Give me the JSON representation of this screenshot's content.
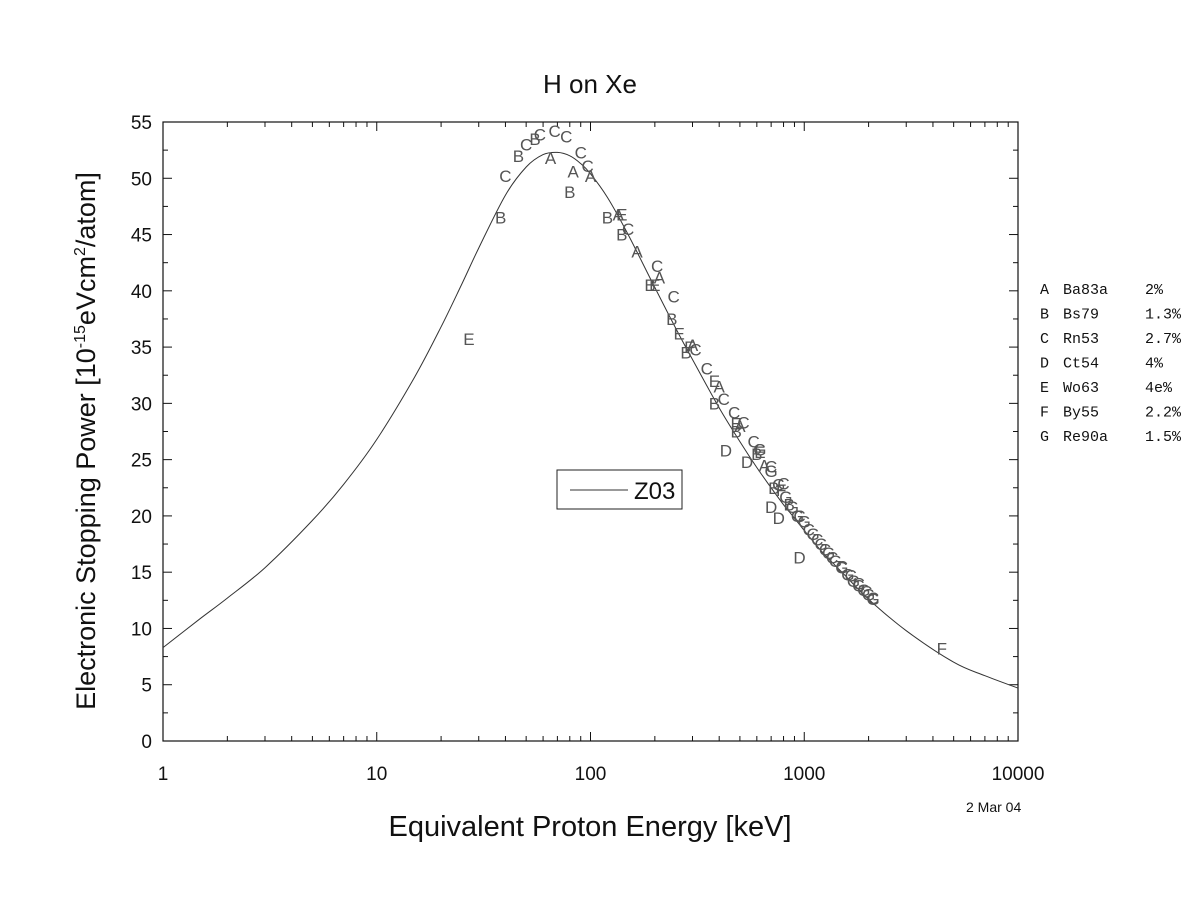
{
  "chart_data": {
    "type": "scatter",
    "title": "H on Xe",
    "xlabel": "Equivalent Proton Energy [keV]",
    "ylabel_main": "Electronic Stopping Power [10",
    "ylabel_exp1": "-15",
    "ylabel_mid": "eVcm",
    "ylabel_exp2": "2",
    "ylabel_end": "/atom]",
    "x_scale": "log",
    "xlim": [
      1,
      10000
    ],
    "ylim": [
      0,
      55
    ],
    "x_ticks": [
      1,
      10,
      100,
      1000,
      10000
    ],
    "x_tick_labels": [
      "1",
      "10",
      "100",
      "1000",
      "10000"
    ],
    "y_ticks": [
      0,
      5,
      10,
      15,
      20,
      25,
      30,
      35,
      40,
      45,
      50,
      55
    ],
    "y_tick_labels": [
      "0",
      "5",
      "10",
      "15",
      "20",
      "25",
      "30",
      "35",
      "40",
      "45",
      "50",
      "55"
    ],
    "grid": false,
    "date_label": "2 Mar 04",
    "legend": {
      "placement": "center",
      "entries": [
        {
          "name": "Z03",
          "style": "line",
          "color": "#333333"
        }
      ]
    },
    "curve": {
      "name": "Z03",
      "x": [
        1,
        1.5,
        2,
        3,
        5,
        7,
        10,
        15,
        20,
        25,
        30,
        40,
        50,
        60,
        70,
        80,
        90,
        100,
        120,
        150,
        200,
        250,
        300,
        400,
        500,
        600,
        700,
        800,
        900,
        1000,
        1200,
        1500,
        2000,
        3000,
        5000,
        7000,
        10000
      ],
      "y": [
        8.3,
        10.9,
        12.7,
        15.4,
        19.6,
        22.8,
        26.8,
        32.3,
        36.8,
        40.6,
        43.8,
        48.5,
        51.0,
        52.1,
        52.3,
        52.0,
        51.3,
        50.4,
        48.3,
        45.0,
        40.3,
        36.7,
        33.9,
        29.6,
        26.6,
        24.3,
        22.5,
        21.0,
        19.8,
        18.7,
        16.9,
        15.0,
        12.6,
        9.8,
        7.0,
        5.8,
        4.7
      ]
    },
    "reference_legend": [
      {
        "letter": "A",
        "ref": "Ba83a",
        "error": "2%"
      },
      {
        "letter": "B",
        "ref": "Bs79",
        "error": "1.3%"
      },
      {
        "letter": "C",
        "ref": "Rn53",
        "error": "2.7%"
      },
      {
        "letter": "D",
        "ref": "Ct54",
        "error": "4%"
      },
      {
        "letter": "E",
        "ref": "Wo63",
        "error": "4e%"
      },
      {
        "letter": "F",
        "ref": "By55",
        "error": "2.2%"
      },
      {
        "letter": "G",
        "ref": "Re90a",
        "error": "1.5%"
      }
    ],
    "points": [
      [
        "E",
        27,
        35.7
      ],
      [
        "E",
        140,
        46.8
      ],
      [
        "E",
        200,
        40.5
      ],
      [
        "E",
        260,
        36.2
      ],
      [
        "E",
        380,
        32.0
      ],
      [
        "E",
        480,
        28.2
      ],
      [
        "E",
        620,
        25.7
      ],
      [
        "F",
        4400,
        8.2
      ],
      [
        "F",
        290,
        35.0
      ],
      [
        "F",
        780,
        22.3
      ],
      [
        "B",
        38,
        46.5
      ],
      [
        "B",
        46,
        52.0
      ],
      [
        "B",
        55,
        53.5
      ],
      [
        "B",
        80,
        48.8
      ],
      [
        "B",
        120,
        46.5
      ],
      [
        "B",
        140,
        45.0
      ],
      [
        "B",
        190,
        40.5
      ],
      [
        "B",
        240,
        37.5
      ],
      [
        "B",
        280,
        34.5
      ],
      [
        "B",
        380,
        30.0
      ],
      [
        "B",
        480,
        27.5
      ],
      [
        "B",
        600,
        25.5
      ],
      [
        "B",
        720,
        22.5
      ],
      [
        "B",
        850,
        21.0
      ],
      [
        "A",
        65,
        51.8
      ],
      [
        "A",
        83,
        50.6
      ],
      [
        "A",
        100,
        50.2
      ],
      [
        "A",
        135,
        46.8
      ],
      [
        "A",
        165,
        43.5
      ],
      [
        "A",
        210,
        41.2
      ],
      [
        "A",
        300,
        35.2
      ],
      [
        "A",
        400,
        31.5
      ],
      [
        "A",
        500,
        28.0
      ],
      [
        "A",
        650,
        24.5
      ],
      [
        "C",
        40,
        50.2
      ],
      [
        "C",
        50,
        53.0
      ],
      [
        "C",
        58,
        53.9
      ],
      [
        "C",
        68,
        54.2
      ],
      [
        "C",
        77,
        53.7
      ],
      [
        "C",
        90,
        52.3
      ],
      [
        "C",
        97,
        51.1
      ],
      [
        "C",
        150,
        45.5
      ],
      [
        "C",
        205,
        42.2
      ],
      [
        "C",
        245,
        39.5
      ],
      [
        "C",
        310,
        34.8
      ],
      [
        "C",
        350,
        33.1
      ],
      [
        "C",
        420,
        30.4
      ],
      [
        "C",
        470,
        29.2
      ],
      [
        "C",
        520,
        28.3
      ],
      [
        "C",
        580,
        26.6
      ],
      [
        "C",
        700,
        24.4
      ],
      [
        "C",
        800,
        22.9
      ],
      [
        "C",
        950,
        20.0
      ],
      [
        "C",
        1050,
        18.8
      ],
      [
        "C",
        1150,
        17.9
      ],
      [
        "C",
        1250,
        17.0
      ],
      [
        "C",
        1350,
        16.3
      ],
      [
        "C",
        1500,
        15.5
      ],
      [
        "C",
        1650,
        14.7
      ],
      [
        "C",
        1800,
        14.0
      ],
      [
        "C",
        1950,
        13.3
      ],
      [
        "C",
        2100,
        12.7
      ],
      [
        "D",
        430,
        25.8
      ],
      [
        "D",
        540,
        24.8
      ],
      [
        "D",
        700,
        20.8
      ],
      [
        "D",
        760,
        19.8
      ],
      [
        "D",
        950,
        16.3
      ],
      [
        "G",
        620,
        25.9
      ],
      [
        "G",
        700,
        24.0
      ],
      [
        "G",
        760,
        22.8
      ],
      [
        "G",
        820,
        21.7
      ],
      [
        "G",
        880,
        20.8
      ],
      [
        "G",
        930,
        20.0
      ],
      [
        "G",
        1000,
        19.5
      ],
      [
        "G",
        1100,
        18.4
      ],
      [
        "G",
        1200,
        17.5
      ],
      [
        "G",
        1300,
        16.7
      ],
      [
        "G",
        1400,
        16.0
      ],
      [
        "G",
        1500,
        15.4
      ],
      [
        "G",
        1600,
        14.8
      ],
      [
        "G",
        1700,
        14.2
      ],
      [
        "G",
        1800,
        13.8
      ],
      [
        "G",
        1900,
        13.4
      ],
      [
        "G",
        2000,
        13.0
      ],
      [
        "G",
        2100,
        12.6
      ]
    ]
  }
}
